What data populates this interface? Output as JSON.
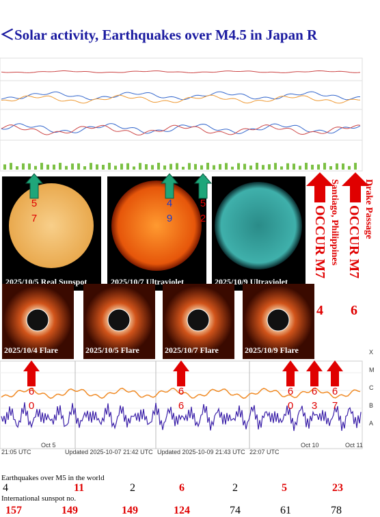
{
  "header": {
    "title": "＜Solar activity, Earthquakes over M4.5 in Japan R"
  },
  "sun_images": [
    {
      "caption": "2025/10/5  Real Sunspot"
    },
    {
      "caption": "2025/10/7 Ultraviolet"
    },
    {
      "caption": "2025/10/9 Ultraviolet"
    }
  ],
  "flare_images": [
    {
      "caption": "2025/10/4 Flare"
    },
    {
      "caption": "2025/10/5 Flare"
    },
    {
      "caption": "2025/10/7 Flare"
    },
    {
      "caption": "2025/10/9 Flare"
    }
  ],
  "green_arrows": [
    {
      "top": "5",
      "bottom": "7"
    },
    {
      "top": "4",
      "bottom": "9"
    },
    {
      "top": "5",
      "bottom": "2"
    }
  ],
  "red_arrows": [
    {
      "top": "6",
      "bottom": "0"
    },
    {
      "top": "6",
      "bottom": "6"
    },
    {
      "top": "6",
      "bottom": "0"
    },
    {
      "top": "6",
      "bottom": "3"
    },
    {
      "top": "6",
      "bottom": "7"
    }
  ],
  "quake_notes": [
    {
      "place": "Santiago, Philippines",
      "label": "OCCUR M7",
      "digit": "4"
    },
    {
      "place": "Drake Passage",
      "label": "OCCUR M7",
      "digit": "6"
    }
  ],
  "xray_chart": {
    "levels": [
      "X",
      "M",
      "C",
      "B",
      "A"
    ],
    "times": [
      "21:05 UTC",
      "Updated 2025-10-07 21:42 UTC",
      "Updated 2025-10-09 21:43 UTC",
      "22:07 UTC"
    ],
    "dates": [
      "Oct 5",
      "Oct 10",
      "Oct 11"
    ]
  },
  "table": {
    "quake_heading": "Earthquakes over M5 in the world",
    "quakes": [
      "4",
      "11",
      "2",
      "6",
      "2",
      "5",
      "23"
    ],
    "sunspot_heading": "International sunspot no.",
    "sunspots": [
      "157",
      "149",
      "149",
      "124",
      "74",
      "61",
      "78"
    ]
  }
}
